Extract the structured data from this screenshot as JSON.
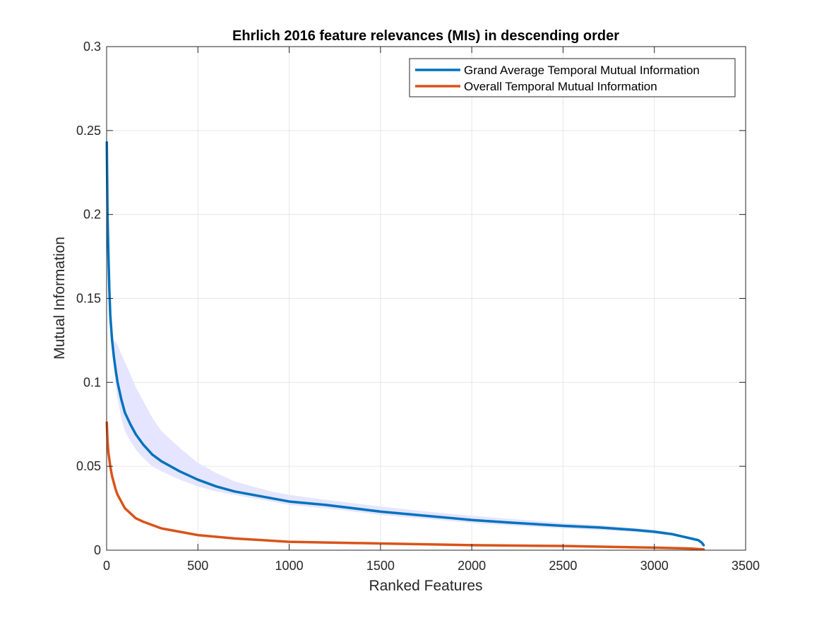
{
  "chart_data": {
    "type": "line",
    "title": "Ehrlich 2016 feature relevances (MIs) in descending order",
    "xlabel": "Ranked Features",
    "ylabel": "Mutual Information",
    "xlim": [
      0,
      3500
    ],
    "ylim": [
      0,
      0.3
    ],
    "xticks": [
      0,
      500,
      1000,
      1500,
      2000,
      2500,
      3000,
      3500
    ],
    "yticks": [
      0,
      0.05,
      0.1,
      0.15,
      0.2,
      0.25,
      0.3
    ],
    "xtick_labels": [
      "0",
      "500",
      "1000",
      "1500",
      "2000",
      "2500",
      "3000",
      "3500"
    ],
    "ytick_labels": [
      "0",
      "0.05",
      "0.1",
      "0.15",
      "0.2",
      "0.25",
      "0.3"
    ],
    "grid": true,
    "legend_position": "top-right",
    "series": [
      {
        "name": "Grand Average Temporal Mutual Information",
        "color": "#0072BD",
        "x": [
          1,
          5,
          10,
          15,
          20,
          30,
          40,
          50,
          60,
          80,
          100,
          130,
          160,
          200,
          250,
          300,
          400,
          500,
          600,
          700,
          800,
          900,
          1000,
          1200,
          1500,
          1800,
          2000,
          2200,
          2500,
          2700,
          2900,
          3000,
          3100,
          3200,
          3240,
          3260,
          3270
        ],
        "y": [
          0.243,
          0.2,
          0.175,
          0.155,
          0.14,
          0.125,
          0.115,
          0.107,
          0.1,
          0.09,
          0.082,
          0.075,
          0.069,
          0.063,
          0.057,
          0.053,
          0.047,
          0.042,
          0.038,
          0.035,
          0.033,
          0.031,
          0.029,
          0.027,
          0.023,
          0.02,
          0.018,
          0.0165,
          0.0145,
          0.0135,
          0.012,
          0.011,
          0.0095,
          0.007,
          0.006,
          0.0045,
          0.003
        ]
      },
      {
        "name": "Overall Temporal Mutual Information",
        "color": "#D95319",
        "x": [
          1,
          5,
          10,
          20,
          30,
          40,
          50,
          60,
          80,
          100,
          130,
          160,
          200,
          250,
          300,
          400,
          500,
          700,
          1000,
          1500,
          2000,
          2500,
          3000,
          3200,
          3270
        ],
        "y": [
          0.076,
          0.065,
          0.058,
          0.05,
          0.044,
          0.04,
          0.036,
          0.033,
          0.029,
          0.025,
          0.022,
          0.019,
          0.017,
          0.015,
          0.013,
          0.011,
          0.009,
          0.007,
          0.005,
          0.004,
          0.003,
          0.0025,
          0.0015,
          0.001,
          0.0005
        ]
      }
    ],
    "shaded_band": {
      "color": "#E5E5FF",
      "x": [
        1,
        5,
        10,
        15,
        20,
        30,
        40,
        50,
        60,
        80,
        100,
        130,
        160,
        200,
        250,
        300,
        400,
        500,
        600,
        700,
        800,
        900,
        1000,
        1200,
        1500,
        1800,
        2000,
        2200,
        2500,
        2700,
        2900,
        3000,
        3100,
        3200,
        3240,
        3260,
        3270
      ],
      "upper": [
        0.243,
        0.2,
        0.176,
        0.156,
        0.141,
        0.128,
        0.125,
        0.124,
        0.122,
        0.117,
        0.112,
        0.105,
        0.097,
        0.089,
        0.079,
        0.071,
        0.061,
        0.052,
        0.046,
        0.041,
        0.038,
        0.035,
        0.033,
        0.03,
        0.026,
        0.0225,
        0.0205,
        0.0188,
        0.0162,
        0.015,
        0.0132,
        0.0121,
        0.0104,
        0.0077,
        0.0066,
        0.005,
        0.0034
      ],
      "lower": [
        0.243,
        0.2,
        0.174,
        0.154,
        0.139,
        0.122,
        0.108,
        0.098,
        0.09,
        0.079,
        0.071,
        0.065,
        0.06,
        0.055,
        0.05,
        0.047,
        0.042,
        0.038,
        0.035,
        0.033,
        0.031,
        0.029,
        0.027,
        0.025,
        0.021,
        0.0182,
        0.0162,
        0.0148,
        0.013,
        0.012,
        0.0108,
        0.0099,
        0.0086,
        0.0063,
        0.0054,
        0.004,
        0.0026
      ]
    }
  }
}
